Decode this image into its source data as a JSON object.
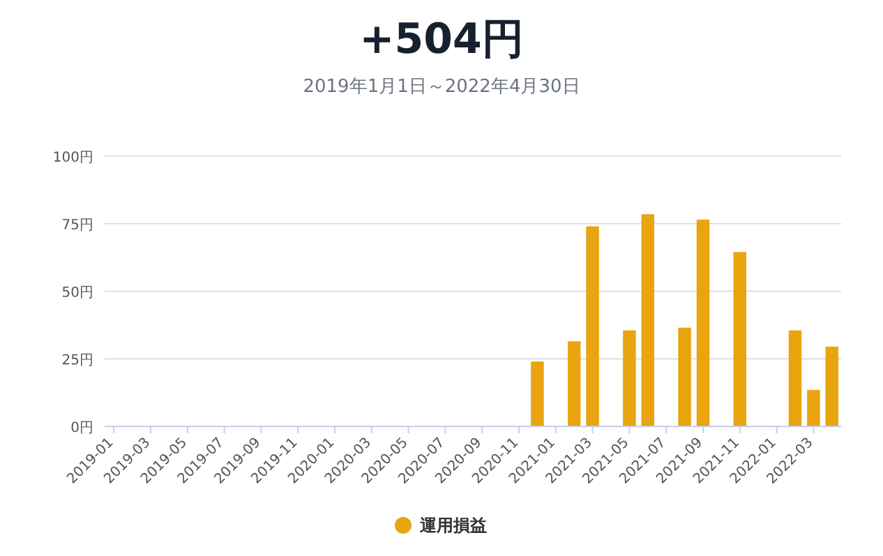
{
  "chart_data": {
    "type": "bar",
    "title": "+504円",
    "subtitle": "2019年1月1日～2022年4月30日",
    "categories": [
      "2019-01",
      null,
      "2019-03",
      null,
      "2019-05",
      null,
      "2019-07",
      null,
      "2019-09",
      null,
      "2019-11",
      null,
      "2020-01",
      null,
      "2020-03",
      null,
      "2020-05",
      null,
      "2020-07",
      null,
      "2020-09",
      null,
      "2020-11",
      null,
      "2021-01",
      null,
      "2021-03",
      null,
      "2021-05",
      null,
      "2021-07",
      null,
      "2021-09",
      null,
      "2021-11",
      null,
      "2022-01",
      null,
      "2022-03",
      null
    ],
    "series": [
      {
        "name": "運用損益",
        "color": "#e8a510",
        "values": [
          null,
          null,
          null,
          null,
          null,
          null,
          null,
          null,
          null,
          null,
          null,
          null,
          null,
          null,
          null,
          null,
          null,
          null,
          null,
          null,
          null,
          null,
          null,
          24,
          null,
          31.5,
          74,
          null,
          35.5,
          78.5,
          null,
          36.5,
          76.5,
          null,
          64.5,
          null,
          null,
          35.5,
          13.5,
          29.5
        ]
      }
    ],
    "ylim": [
      0,
      100
    ],
    "yticks": [
      {
        "value": 0,
        "label": "0円"
      },
      {
        "value": 25,
        "label": "25円"
      },
      {
        "value": 50,
        "label": "50円"
      },
      {
        "value": 75,
        "label": "75円"
      },
      {
        "value": 100,
        "label": "100円"
      }
    ],
    "grid": "y",
    "legend": "bottom"
  }
}
